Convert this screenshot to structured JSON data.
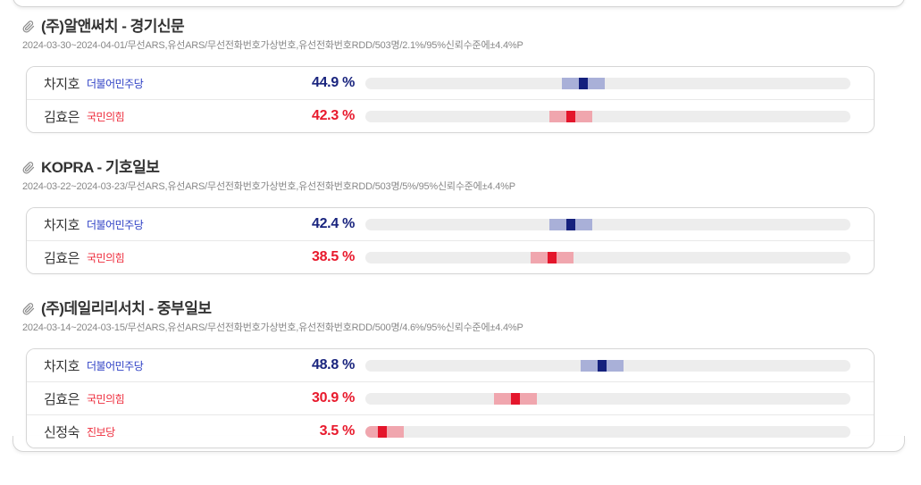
{
  "colors": {
    "blue": {
      "pct": "#19247e",
      "party": "#2f41c5",
      "marker": "#14207d",
      "band": "#a9b0d8"
    },
    "red": {
      "pct": "#e8192c",
      "party": "#ee2d3d",
      "marker": "#e4152b",
      "band": "#f0a6ae"
    }
  },
  "sections": [
    {
      "title": "(주)알앤써치 - 경기신문",
      "meta": "2024-03-30~2024-04-01/무선ARS,유선ARS/무선전화번호가상번호,유선전화번호RDD/503명/2.1%/95%신뢰수준에±4.4%P",
      "margin_pp": 4.4,
      "rows": [
        {
          "name": "차지호",
          "party": "더불어민주당",
          "value": 44.9,
          "pct_label": "44.9 %",
          "color": "blue"
        },
        {
          "name": "김효은",
          "party": "국민의힘",
          "value": 42.3,
          "pct_label": "42.3 %",
          "color": "red"
        }
      ]
    },
    {
      "title": "KOPRA - 기호일보",
      "meta": "2024-03-22~2024-03-23/무선ARS,유선ARS/무선전화번호가상번호,유선전화번호RDD/503명/5%/95%신뢰수준에±4.4%P",
      "margin_pp": 4.4,
      "rows": [
        {
          "name": "차지호",
          "party": "더불어민주당",
          "value": 42.4,
          "pct_label": "42.4 %",
          "color": "blue"
        },
        {
          "name": "김효은",
          "party": "국민의힘",
          "value": 38.5,
          "pct_label": "38.5 %",
          "color": "red"
        }
      ]
    },
    {
      "title": "(주)데일리리서치 - 중부일보",
      "meta": "2024-03-14~2024-03-15/무선ARS,유선ARS/무선전화번호가상번호,유선전화번호RDD/500명/4.6%/95%신뢰수준에±4.4%P",
      "margin_pp": 4.4,
      "rows": [
        {
          "name": "차지호",
          "party": "더불어민주당",
          "value": 48.8,
          "pct_label": "48.8 %",
          "color": "blue"
        },
        {
          "name": "김효은",
          "party": "국민의힘",
          "value": 30.9,
          "pct_label": "30.9 %",
          "color": "red"
        },
        {
          "name": "신정숙",
          "party": "진보당",
          "value": 3.5,
          "pct_label": "3.5 %",
          "color": "red"
        }
      ]
    }
  ]
}
